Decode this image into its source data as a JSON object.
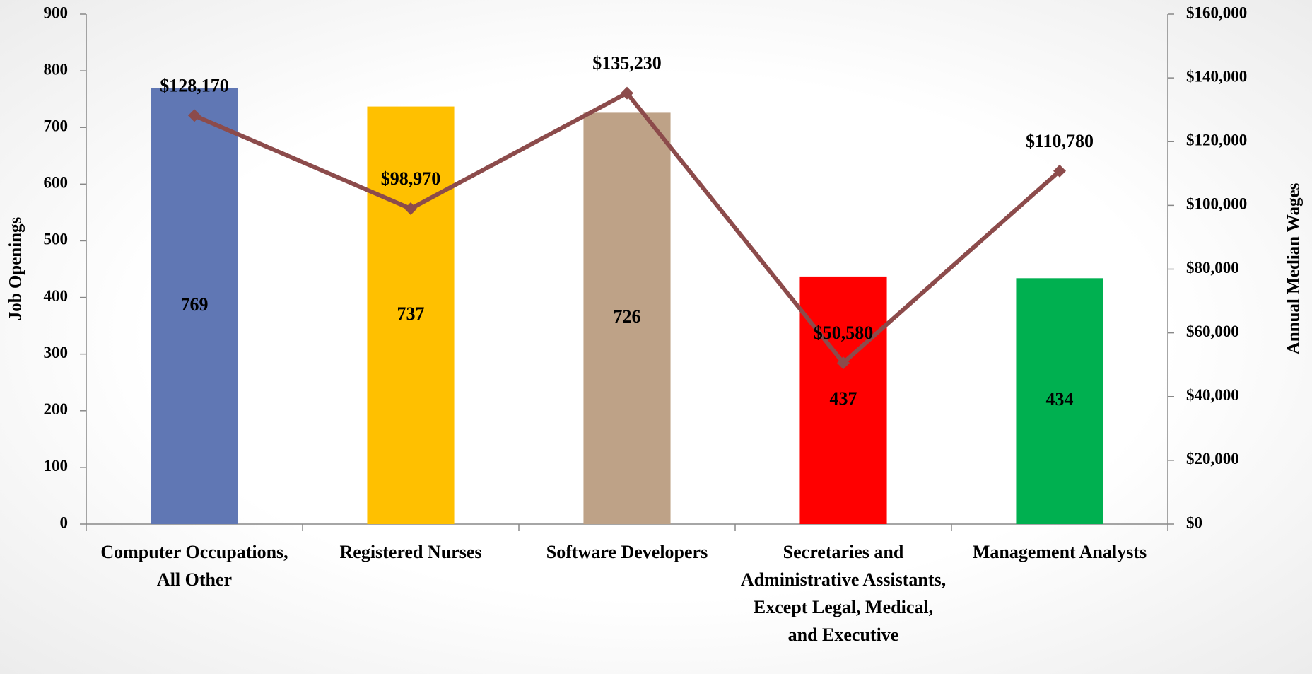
{
  "chart_data": {
    "type": "bar_line",
    "categories": [
      "Computer Occupations, All Other",
      "Registered Nurses",
      "Software Developers",
      "Secretaries and Administrative Assistants, Except Legal, Medical, and Executive",
      "Management Analysts"
    ],
    "y_label": "Job Openings",
    "y2_label": "Annual Median Wages",
    "series": [
      {
        "name": "Job Openings",
        "type": "bar",
        "colors": [
          "#6077b4",
          "#ffc000",
          "#bea287",
          "#ff0000",
          "#00b050"
        ],
        "values": [
          769,
          737,
          726,
          437,
          434
        ]
      },
      {
        "name": "Annual Median Wages",
        "type": "line",
        "axis": "y2",
        "color": "#8c4b4b",
        "values": [
          128170,
          98970,
          135230,
          50580,
          110780
        ],
        "value_labels": [
          "$128,170",
          "$98,970",
          "$135,230",
          "$50,580",
          "$110,780"
        ]
      }
    ],
    "ylim": [
      0,
      900
    ],
    "yticks": [
      0,
      100,
      200,
      300,
      400,
      500,
      600,
      700,
      800,
      900
    ],
    "y2lim": [
      0,
      160000
    ],
    "y2ticks": [
      {
        "value": 0,
        "label": "$0"
      },
      {
        "value": 20000,
        "label": "$20,000"
      },
      {
        "value": 40000,
        "label": "$40,000"
      },
      {
        "value": 60000,
        "label": "$60,000"
      },
      {
        "value": 80000,
        "label": "$80,000"
      },
      {
        "value": 100000,
        "label": "$100,000"
      },
      {
        "value": 120000,
        "label": "$120,000"
      },
      {
        "value": 140000,
        "label": "$140,000"
      },
      {
        "value": 160000,
        "label": "$160,000"
      }
    ]
  }
}
